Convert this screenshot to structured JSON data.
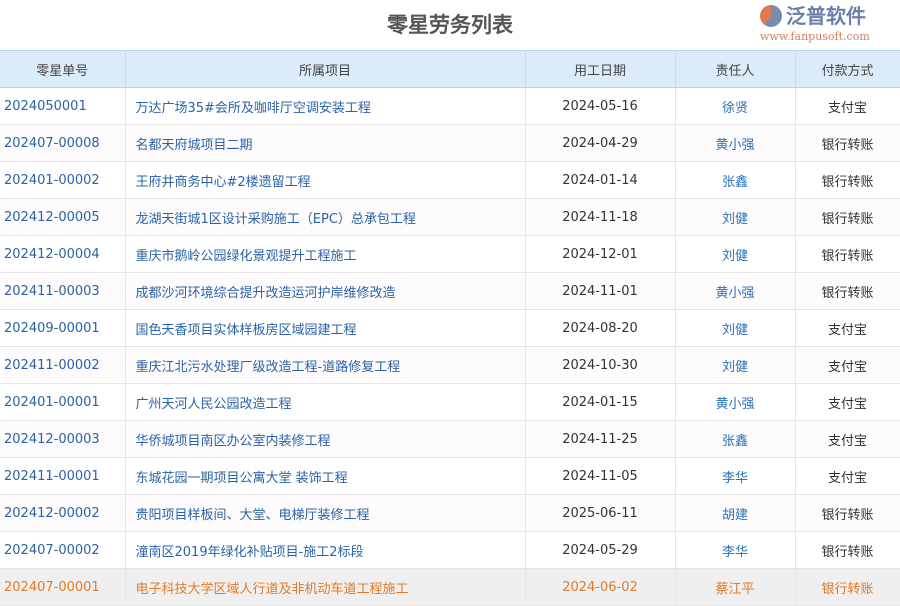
{
  "title": "零星劳务列表",
  "columns": [
    "零星单号",
    "所属项目",
    "用工日期",
    "责任人",
    "付款方式"
  ],
  "rows": [
    [
      "2024050001",
      "万达广场35#会所及咖啡厅空调安装工程",
      "2024-05-16",
      "徐贤",
      "支付宝"
    ],
    [
      "202407-00008",
      "名都天府城项目二期",
      "2024-04-29",
      "黄小强",
      "银行转账"
    ],
    [
      "202401-00002",
      "王府井商务中心#2楼遗留工程",
      "2024-01-14",
      "张鑫",
      "银行转账"
    ],
    [
      "202412-00005",
      "龙湖天街城1区设计采购施工（EPC）总承包工程",
      "2024-11-18",
      "刘健",
      "银行转账"
    ],
    [
      "202412-00004",
      "重庆市鹅岭公园绿化景观提升工程施工",
      "2024-12-01",
      "刘健",
      "银行转账"
    ],
    [
      "202411-00003",
      "成都沙河环境综合提升改造运河护岸维修改造",
      "2024-11-01",
      "黄小强",
      "银行转账"
    ],
    [
      "202409-00001",
      "国色天香项目实体样板房区域园建工程",
      "2024-08-20",
      "刘健",
      "支付宝"
    ],
    [
      "202411-00002",
      "重庆江北污水处理厂级改造工程-道路修复工程",
      "2024-10-30",
      "刘健",
      "支付宝"
    ],
    [
      "202401-00001",
      "广州天河人民公园改造工程",
      "2024-01-15",
      "黄小强",
      "支付宝"
    ],
    [
      "202412-00003",
      "华侨城项目南区办公室内装修工程",
      "2024-11-25",
      "张鑫",
      "支付宝"
    ],
    [
      "202411-00001",
      "东城花园一期项目公寓大堂 装饰工程",
      "2024-11-05",
      "李华",
      "支付宝"
    ],
    [
      "202412-00002",
      "贵阳项目样板间、大堂、电梯厅装修工程",
      "2025-06-11",
      "胡建",
      "银行转账"
    ],
    [
      "202407-00002",
      "潼南区2019年绿化补贴项目-施工2标段",
      "2024-05-29",
      "李华",
      "银行转账"
    ],
    [
      "202407-00001",
      "电子科技大学区域人行道及非机动车道工程施工",
      "2024-06-02",
      "蔡江平",
      "银行转账"
    ]
  ],
  "highlighted_row": 13,
  "watermark": {
    "name": "泛普软件",
    "url": "www.fanpusoft.com"
  },
  "colors": {
    "header_bg": "#dcebf9",
    "link": "#2a62a8",
    "highlight": "#e07b28"
  }
}
